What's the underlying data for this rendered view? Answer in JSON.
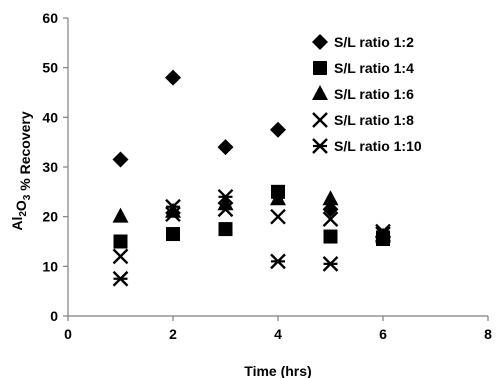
{
  "chart_data": {
    "type": "scatter",
    "title": "",
    "xlabel": "Time (hrs)",
    "ylabel": "Al2O3 % Recovery",
    "ylabel_parts": {
      "main": "Al",
      "sub1": "2",
      "mid": "O",
      "sub2": "3",
      "rest": " % Recovery"
    },
    "xlim": [
      0,
      8
    ],
    "ylim": [
      0,
      60
    ],
    "x_ticks": [
      "0",
      "2",
      "4",
      "6",
      "8"
    ],
    "y_ticks": [
      "0",
      "10",
      "20",
      "30",
      "40",
      "50",
      "60"
    ],
    "grid": false,
    "legend_position": "top-right",
    "marker_color": "#000000",
    "series": [
      {
        "name": "S/L ratio 1:2",
        "marker": "diamond",
        "points": [
          [
            1,
            31.5
          ],
          [
            2,
            48
          ],
          [
            3,
            34
          ],
          [
            4,
            37.5
          ],
          [
            5,
            21.5
          ],
          [
            6,
            16
          ]
        ]
      },
      {
        "name": "S/L ratio 1:4",
        "marker": "square",
        "points": [
          [
            1,
            15
          ],
          [
            2,
            16.5
          ],
          [
            3,
            17.5
          ],
          [
            4,
            25
          ],
          [
            5,
            16
          ],
          [
            6,
            15.5
          ]
        ]
      },
      {
        "name": "S/L ratio 1:6",
        "marker": "triangle",
        "points": [
          [
            1,
            20
          ],
          [
            2,
            21
          ],
          [
            3,
            22.5
          ],
          [
            4,
            23.5
          ],
          [
            5,
            23.5
          ],
          [
            6,
            16
          ]
        ]
      },
      {
        "name": "S/L ratio 1:8",
        "marker": "x",
        "points": [
          [
            1,
            12
          ],
          [
            2,
            20.5
          ],
          [
            3,
            21.5
          ],
          [
            4,
            20
          ],
          [
            5,
            19.5
          ],
          [
            6,
            16.5
          ]
        ]
      },
      {
        "name": "S/L ratio 1:10",
        "marker": "asterisk",
        "points": [
          [
            1,
            7.5
          ],
          [
            2,
            22
          ],
          [
            3,
            24
          ],
          [
            4,
            11
          ],
          [
            5,
            10.5
          ],
          [
            6,
            17
          ]
        ]
      }
    ]
  }
}
